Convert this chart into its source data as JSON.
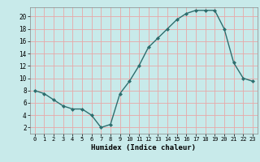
{
  "x": [
    0,
    1,
    2,
    3,
    4,
    5,
    6,
    7,
    8,
    9,
    10,
    11,
    12,
    13,
    14,
    15,
    16,
    17,
    18,
    19,
    20,
    21,
    22,
    23
  ],
  "y": [
    8,
    7.5,
    6.5,
    5.5,
    5,
    5,
    4,
    2,
    2.5,
    7.5,
    9.5,
    12,
    15,
    16.5,
    18,
    19.5,
    20.5,
    21,
    21,
    21,
    18,
    12.5,
    10,
    9.5
  ],
  "line_color": "#2d6e6e",
  "marker_color": "#2d6e6e",
  "bg_color": "#c8eaea",
  "grid_color": "#e8a8a8",
  "xlabel": "Humidex (Indice chaleur)",
  "xlim": [
    -0.5,
    23.5
  ],
  "ylim": [
    1,
    21.5
  ],
  "yticks": [
    2,
    4,
    6,
    8,
    10,
    12,
    14,
    16,
    18,
    20
  ],
  "xticks": [
    0,
    1,
    2,
    3,
    4,
    5,
    6,
    7,
    8,
    9,
    10,
    11,
    12,
    13,
    14,
    15,
    16,
    17,
    18,
    19,
    20,
    21,
    22,
    23
  ]
}
